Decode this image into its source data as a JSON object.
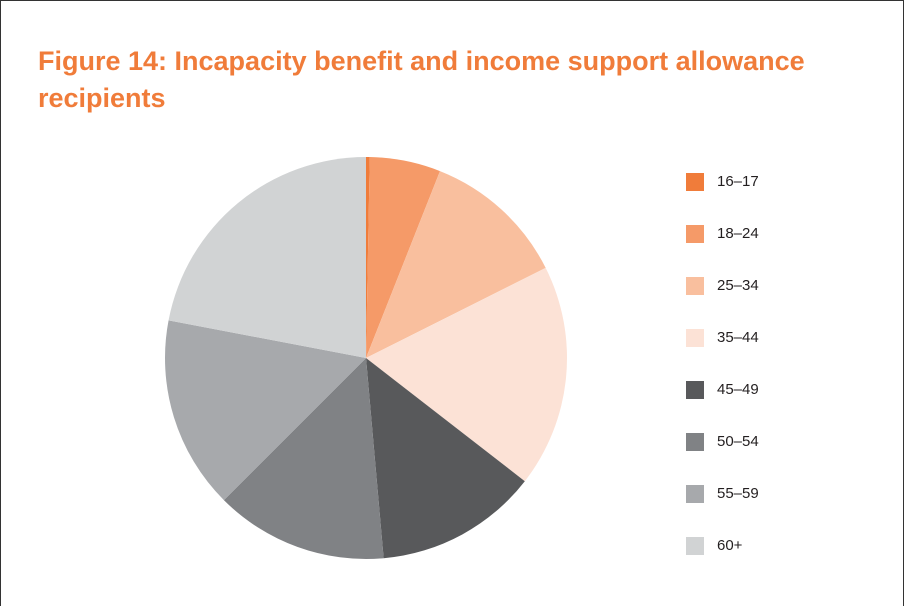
{
  "chart_data": {
    "type": "pie",
    "title": "Figure 14: Incapacity benefit and income support allowance recipients",
    "categories": [
      "16–17",
      "18–24",
      "25–34",
      "35–44",
      "45–49",
      "50–54",
      "55–59",
      "60+"
    ],
    "values": [
      0.3,
      5.7,
      11.6,
      17.9,
      13.1,
      13.9,
      15.5,
      22.0
    ],
    "colors": [
      "#f07c3a",
      "#f59a68",
      "#f9bf9e",
      "#fce2d6",
      "#58595b",
      "#808285",
      "#a7a9ac",
      "#d1d3d4"
    ],
    "legend": "right"
  }
}
